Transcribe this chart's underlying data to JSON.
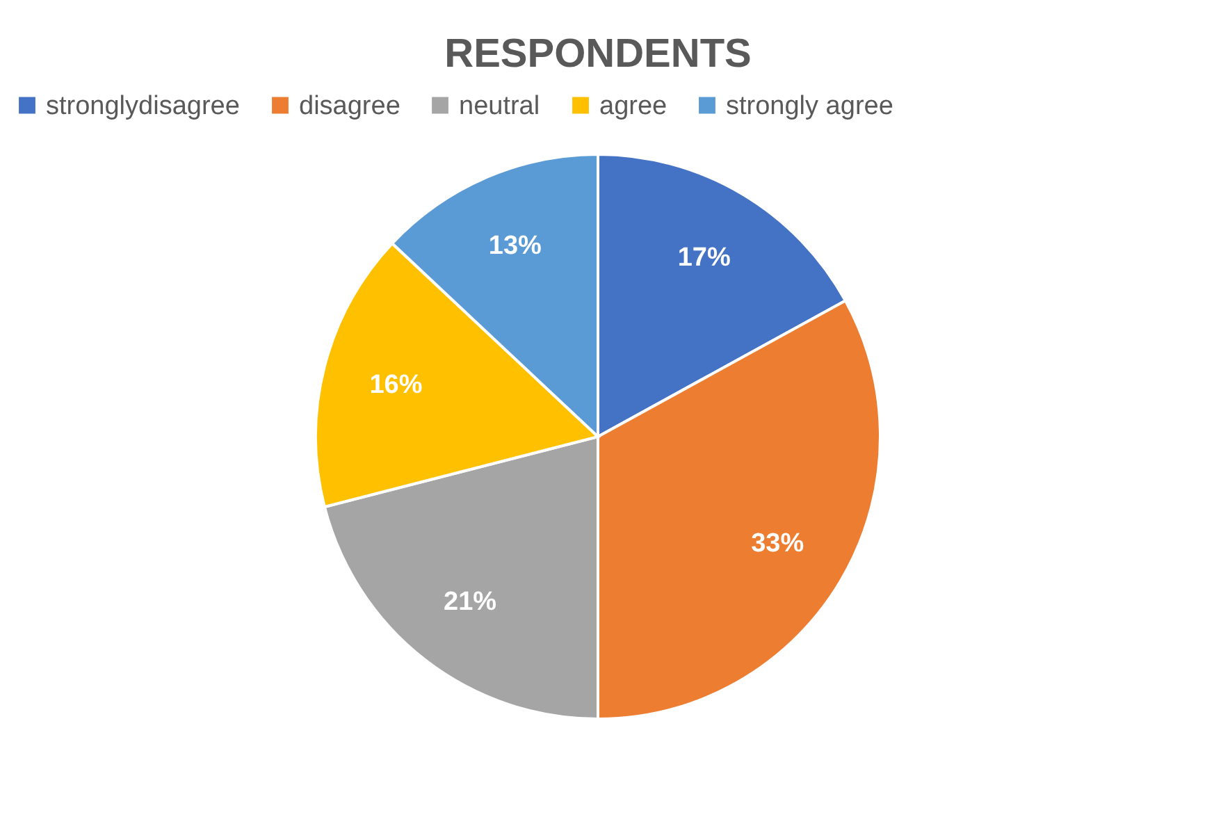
{
  "chart_data": {
    "type": "pie",
    "title": "RESPONDENTS",
    "categories": [
      "stronglydisagree",
      "disagree",
      "neutral",
      "agree",
      "strongly agree"
    ],
    "values": [
      17,
      33,
      21,
      16,
      13
    ],
    "colors": [
      "#4472c4",
      "#ed7d31",
      "#a5a5a5",
      "#ffc000",
      "#5b9bd5"
    ],
    "value_labels": [
      "17%",
      "33%",
      "21%",
      "16%",
      "13%"
    ],
    "legend": "top"
  }
}
